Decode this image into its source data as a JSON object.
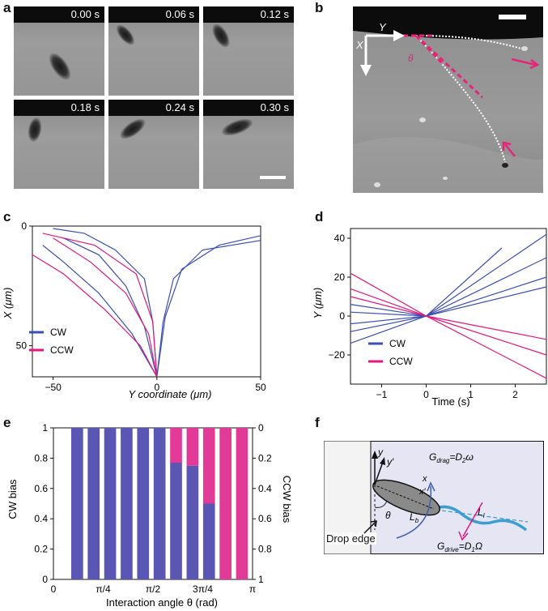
{
  "panels": {
    "a": "a",
    "b": "b",
    "c": "c",
    "d": "d",
    "e": "e",
    "f": "f"
  },
  "panel_a": {
    "timestamps": [
      "0.00 s",
      "0.06 s",
      "0.12 s",
      "0.18 s",
      "0.24 s",
      "0.30 s"
    ]
  },
  "panel_b": {
    "axis_x": "X",
    "axis_y": "Y",
    "angle": "θ",
    "colors": {
      "trajectory": "#ffffff",
      "guide": "#e6247a"
    }
  },
  "chart_data": [
    {
      "panel": "c",
      "type": "line",
      "xlabel": "Y coordinate (μm)",
      "ylabel": "X (μm)",
      "xlim": [
        -60,
        50
      ],
      "ylim": [
        0,
        63
      ],
      "xticks": [
        "−50",
        "0",
        "50"
      ],
      "yticks": [
        "0",
        "50"
      ],
      "legend": [
        "CW",
        "CCW"
      ],
      "legend_position": "bottom-left",
      "colors": {
        "CW": "#3a4fb0",
        "CCW": "#e0197b"
      },
      "series": [
        {
          "name": "CW",
          "values": [
            [
              0,
              63
            ],
            [
              4,
              38
            ],
            [
              12,
              18
            ],
            [
              30,
              8
            ],
            [
              50,
              4
            ]
          ]
        },
        {
          "name": "CW",
          "values": [
            [
              0,
              63
            ],
            [
              3,
              40
            ],
            [
              8,
              22
            ],
            [
              22,
              10
            ],
            [
              50,
              6
            ]
          ]
        },
        {
          "name": "CW",
          "values": [
            [
              0,
              63
            ],
            [
              -2,
              40
            ],
            [
              -6,
              22
            ],
            [
              -20,
              10
            ],
            [
              -35,
              3
            ],
            [
              -50,
              1
            ]
          ]
        },
        {
          "name": "CW",
          "values": [
            [
              0,
              63
            ],
            [
              -6,
              42
            ],
            [
              -15,
              25
            ],
            [
              -28,
              12
            ],
            [
              -45,
              5
            ]
          ]
        },
        {
          "name": "CW",
          "values": [
            [
              0,
              63
            ],
            [
              -12,
              45
            ],
            [
              -28,
              28
            ],
            [
              -45,
              15
            ],
            [
              -55,
              8
            ]
          ]
        },
        {
          "name": "CCW",
          "values": [
            [
              0,
              63
            ],
            [
              -8,
              50
            ],
            [
              -25,
              35
            ],
            [
              -45,
              20
            ],
            [
              -60,
              12
            ]
          ]
        },
        {
          "name": "CCW",
          "values": [
            [
              0,
              63
            ],
            [
              -4,
              45
            ],
            [
              -15,
              28
            ],
            [
              -32,
              15
            ],
            [
              -50,
              5
            ]
          ]
        },
        {
          "name": "CCW",
          "values": [
            [
              0,
              63
            ],
            [
              -2,
              40
            ],
            [
              -10,
              20
            ],
            [
              -30,
              8
            ],
            [
              -55,
              3
            ]
          ]
        }
      ]
    },
    {
      "panel": "d",
      "type": "line",
      "xlabel": "Time (s)",
      "ylabel": "Y (μm)",
      "xlim": [
        -1.7,
        2.7
      ],
      "ylim": [
        -35,
        45
      ],
      "xticks": [
        "−1",
        "0",
        "1",
        "2"
      ],
      "yticks": [
        "−20",
        "0",
        "20",
        "40"
      ],
      "legend": [
        "CW",
        "CCW"
      ],
      "legend_position": "bottom-left",
      "colors": {
        "CW": "#3a4fb0",
        "CCW": "#e0197b"
      },
      "series": [
        {
          "name": "CW",
          "values": [
            [
              -1.7,
              -14
            ],
            [
              0,
              0
            ],
            [
              2.7,
              42
            ]
          ]
        },
        {
          "name": "CW",
          "values": [
            [
              -1.7,
              -8
            ],
            [
              0,
              0
            ],
            [
              2.7,
              30
            ]
          ]
        },
        {
          "name": "CW",
          "values": [
            [
              -1.7,
              -4
            ],
            [
              0,
              0
            ],
            [
              2.7,
              20
            ]
          ]
        },
        {
          "name": "CW",
          "values": [
            [
              -1.7,
              6
            ],
            [
              0,
              0
            ],
            [
              2.7,
              15
            ]
          ]
        },
        {
          "name": "CW",
          "values": [
            [
              -1.7,
              2
            ],
            [
              0,
              0
            ],
            [
              1.7,
              35
            ]
          ]
        },
        {
          "name": "CCW",
          "values": [
            [
              -1.7,
              10
            ],
            [
              0,
              0
            ],
            [
              2.7,
              -32
            ]
          ]
        },
        {
          "name": "CCW",
          "values": [
            [
              -1.7,
              14
            ],
            [
              0,
              0
            ],
            [
              2.7,
              -20
            ]
          ]
        },
        {
          "name": "CCW",
          "values": [
            [
              -1.7,
              22
            ],
            [
              0,
              0
            ],
            [
              2.7,
              -12
            ]
          ]
        }
      ]
    },
    {
      "panel": "e",
      "type": "bar",
      "xlabel": "Interaction angle θ (rad)",
      "ylabel": "CW bias",
      "y2label": "CCW bias",
      "xtick_labels": [
        "0",
        "π/4",
        "π/2",
        "3π/4",
        "π"
      ],
      "yticks": [
        "0",
        "0.2",
        "0.4",
        "0.6",
        "0.8",
        "1"
      ],
      "y2ticks": [
        "1",
        "0.8",
        "0.6",
        "0.4",
        "0.2",
        "0"
      ],
      "ylim": [
        0,
        1
      ],
      "colors": {
        "CW": "#5b55b4",
        "CCW": "#e13a97"
      },
      "cw_values": [
        1,
        1,
        1,
        1,
        1,
        1,
        0.77,
        0.75,
        0.5,
        0,
        0
      ]
    }
  ],
  "panel_f": {
    "y": "y",
    "yprime": "y′",
    "x": "x",
    "xprime": "x′",
    "lb": "L",
    "lb_sub": "b",
    "li": "L",
    "li_sub": "l",
    "theta": "θ",
    "gdrag": "G",
    "gdrag_sub": "drag",
    "gdrag_eq": "=D",
    "gdrag_eq_sub": "2",
    "gdrag_tail": "ω",
    "gdrive": "G",
    "gdrive_sub": "drive",
    "gdrive_eq": "=D",
    "gdrive_eq_sub": "1",
    "gdrive_tail": "Ω",
    "drop_edge": "Drop edge"
  }
}
